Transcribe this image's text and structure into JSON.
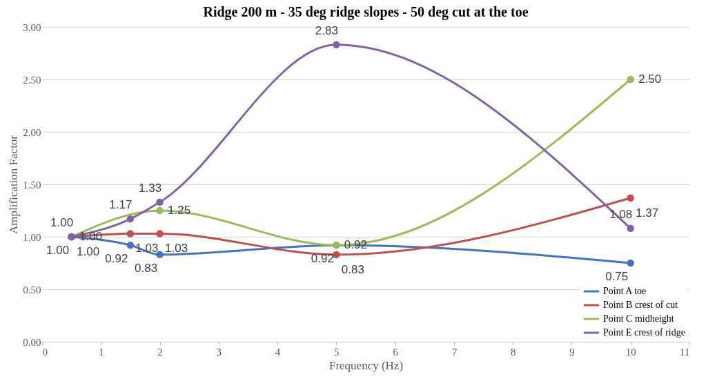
{
  "chart_data": {
    "type": "line",
    "title": "Ridge 200 m - 35 deg ridge slopes - 50 deg cut at the toe",
    "xlabel": "Frequency (Hz)",
    "ylabel": "Amplification Factor",
    "x": [
      0.5,
      1.5,
      2,
      5,
      10
    ],
    "series": [
      {
        "name": "Point A toe",
        "color": "#4472c4",
        "values": [
          1.0,
          0.92,
          0.83,
          0.92,
          0.75
        ],
        "value_labels": [
          "1.00",
          "0.92",
          "0.83",
          "0.92",
          "0.75"
        ]
      },
      {
        "name": "Point B crest of cut",
        "color": "#c0504d",
        "values": [
          1.0,
          1.03,
          1.03,
          0.83,
          1.37
        ],
        "value_labels": [
          "1.00",
          "1.03",
          "1.03",
          "0.83",
          "1.37"
        ]
      },
      {
        "name": "Point C midheight",
        "color": "#9bbb59",
        "x": [
          0.5,
          2,
          5,
          10
        ],
        "values": [
          1.0,
          1.25,
          0.92,
          2.5
        ],
        "value_labels": [
          "1.00",
          "1.25",
          "0.92",
          "2.50"
        ]
      },
      {
        "name": "Point E crest of ridge",
        "color": "#8064a2",
        "values": [
          1.0,
          1.17,
          1.33,
          2.83,
          1.08
        ],
        "value_labels": [
          "1.00",
          "1.17",
          "1.33",
          "2.83",
          "1.08"
        ]
      }
    ],
    "xlim": [
      0,
      11
    ],
    "xticks": [
      0,
      1,
      2,
      3,
      4,
      5,
      6,
      7,
      8,
      9,
      10,
      11
    ],
    "ylim": [
      0,
      3
    ],
    "yticks": [
      {
        "value": 0,
        "label": "0.00"
      },
      {
        "value": 0.5,
        "label": "0.50"
      },
      {
        "value": 1,
        "label": "1.00"
      },
      {
        "value": 1.5,
        "label": "1.50"
      },
      {
        "value": 2,
        "label": "2.00"
      },
      {
        "value": 2.5,
        "label": "2.50"
      },
      {
        "value": 3,
        "label": "3.00"
      }
    ],
    "grid": "y",
    "legend": "bottom right",
    "marker": "circle",
    "line_style": "solid"
  }
}
